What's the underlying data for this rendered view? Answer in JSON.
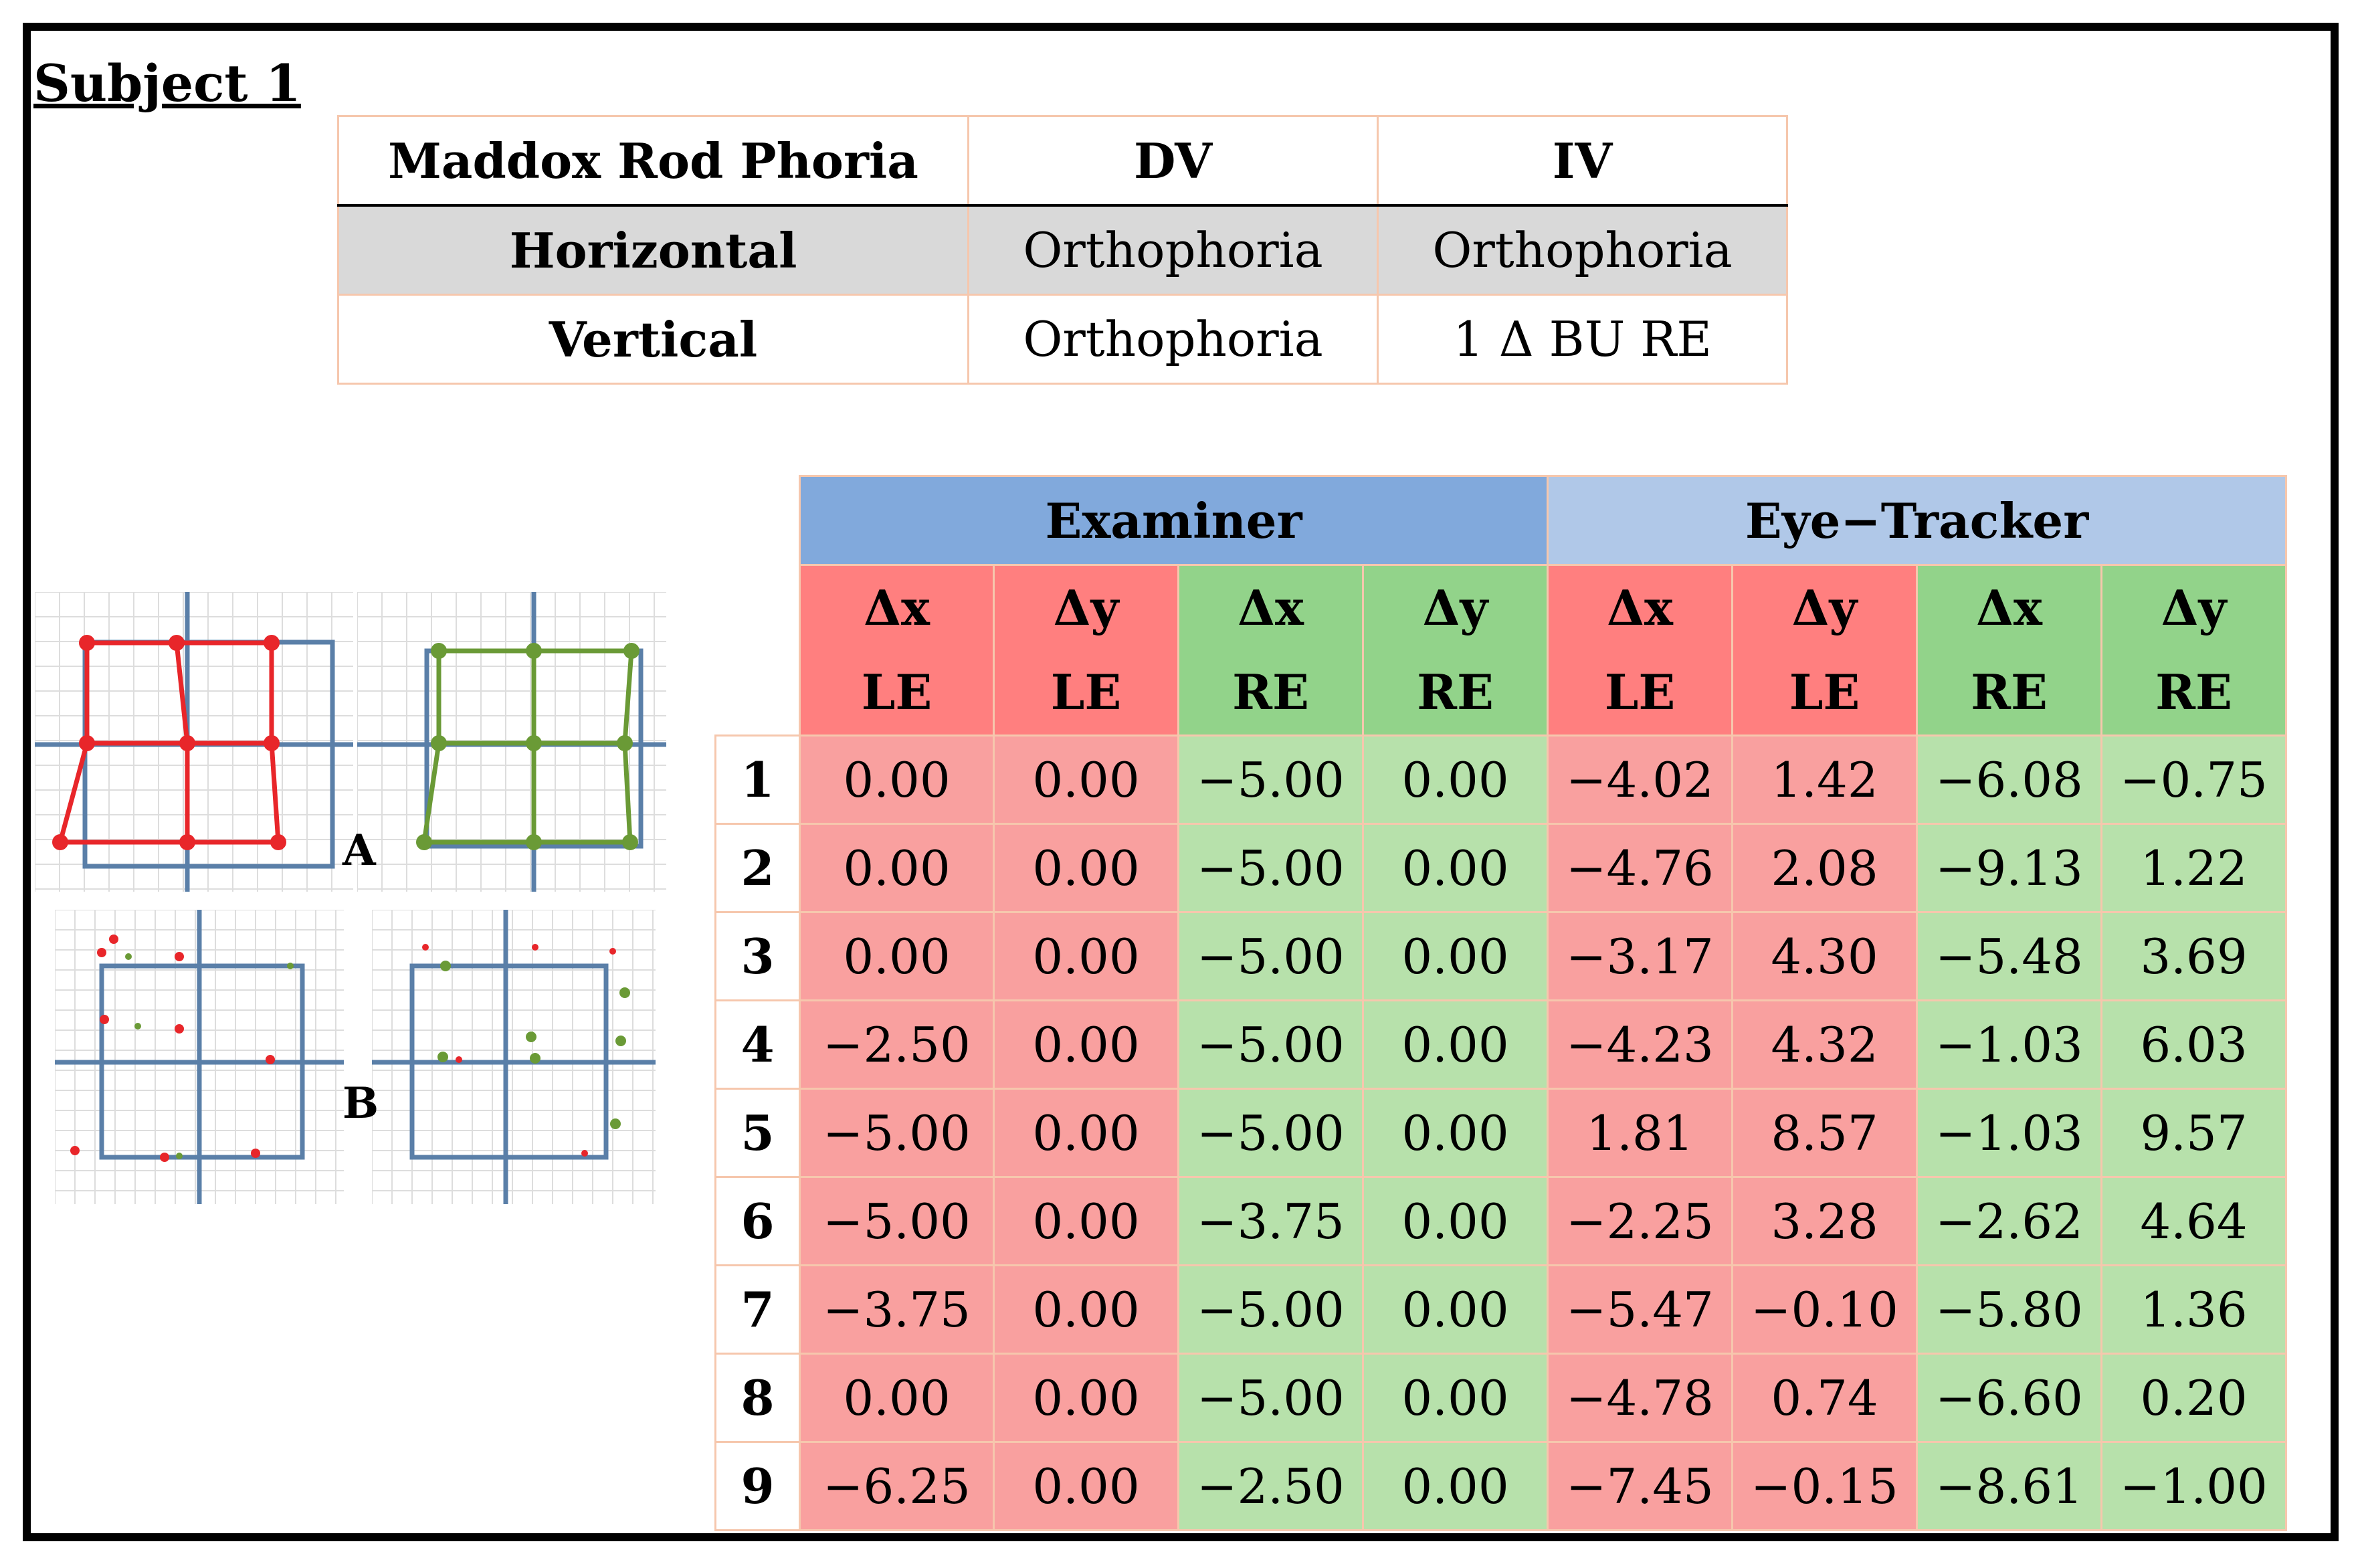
{
  "title": "Subject 1",
  "maddox": {
    "headers": [
      "Maddox Rod Phoria",
      "DV",
      "IV"
    ],
    "rows": [
      {
        "label": "Horizontal",
        "dv": "Orthophoria",
        "iv": "Orthophoria"
      },
      {
        "label": "Vertical",
        "dv": "Orthophoria",
        "iv": "1 Δ BU RE"
      }
    ]
  },
  "results": {
    "groups": [
      "Examiner",
      "Eye−Tracker"
    ],
    "sub_headers": [
      {
        "delta": "Δx",
        "eye": "LE"
      },
      {
        "delta": "Δy",
        "eye": "LE"
      },
      {
        "delta": "Δx",
        "eye": "RE"
      },
      {
        "delta": "Δy",
        "eye": "RE"
      },
      {
        "delta": "Δx",
        "eye": "LE"
      },
      {
        "delta": "Δy",
        "eye": "LE"
      },
      {
        "delta": "Δx",
        "eye": "RE"
      },
      {
        "delta": "Δy",
        "eye": "RE"
      }
    ],
    "rows": [
      {
        "n": "1",
        "v": [
          "0.00",
          "0.00",
          "−5.00",
          "0.00",
          "−4.02",
          "1.42",
          "−6.08",
          "−0.75"
        ]
      },
      {
        "n": "2",
        "v": [
          "0.00",
          "0.00",
          "−5.00",
          "0.00",
          "−4.76",
          "2.08",
          "−9.13",
          "1.22"
        ]
      },
      {
        "n": "3",
        "v": [
          "0.00",
          "0.00",
          "−5.00",
          "0.00",
          "−3.17",
          "4.30",
          "−5.48",
          "3.69"
        ]
      },
      {
        "n": "4",
        "v": [
          "−2.50",
          "0.00",
          "−5.00",
          "0.00",
          "−4.23",
          "4.32",
          "−1.03",
          "6.03"
        ]
      },
      {
        "n": "5",
        "v": [
          "−5.00",
          "0.00",
          "−5.00",
          "0.00",
          "1.81",
          "8.57",
          "−1.03",
          "9.57"
        ]
      },
      {
        "n": "6",
        "v": [
          "−5.00",
          "0.00",
          "−3.75",
          "0.00",
          "−2.25",
          "3.28",
          "−2.62",
          "4.64"
        ]
      },
      {
        "n": "7",
        "v": [
          "−3.75",
          "0.00",
          "−5.00",
          "0.00",
          "−5.47",
          "−0.10",
          "−5.80",
          "1.36"
        ]
      },
      {
        "n": "8",
        "v": [
          "0.00",
          "0.00",
          "−5.00",
          "0.00",
          "−4.78",
          "0.74",
          "−6.60",
          "0.20"
        ]
      },
      {
        "n": "9",
        "v": [
          "−6.25",
          "0.00",
          "−2.50",
          "0.00",
          "−7.45",
          "−0.15",
          "−8.61",
          "−1.00"
        ]
      }
    ]
  },
  "figure": {
    "label_a": "A",
    "label_b": "B",
    "colors": {
      "left_eye": "#e8262a",
      "right_eye": "#6a9a36",
      "axis": "#5a7fa8",
      "grid": "#dddddd"
    }
  }
}
